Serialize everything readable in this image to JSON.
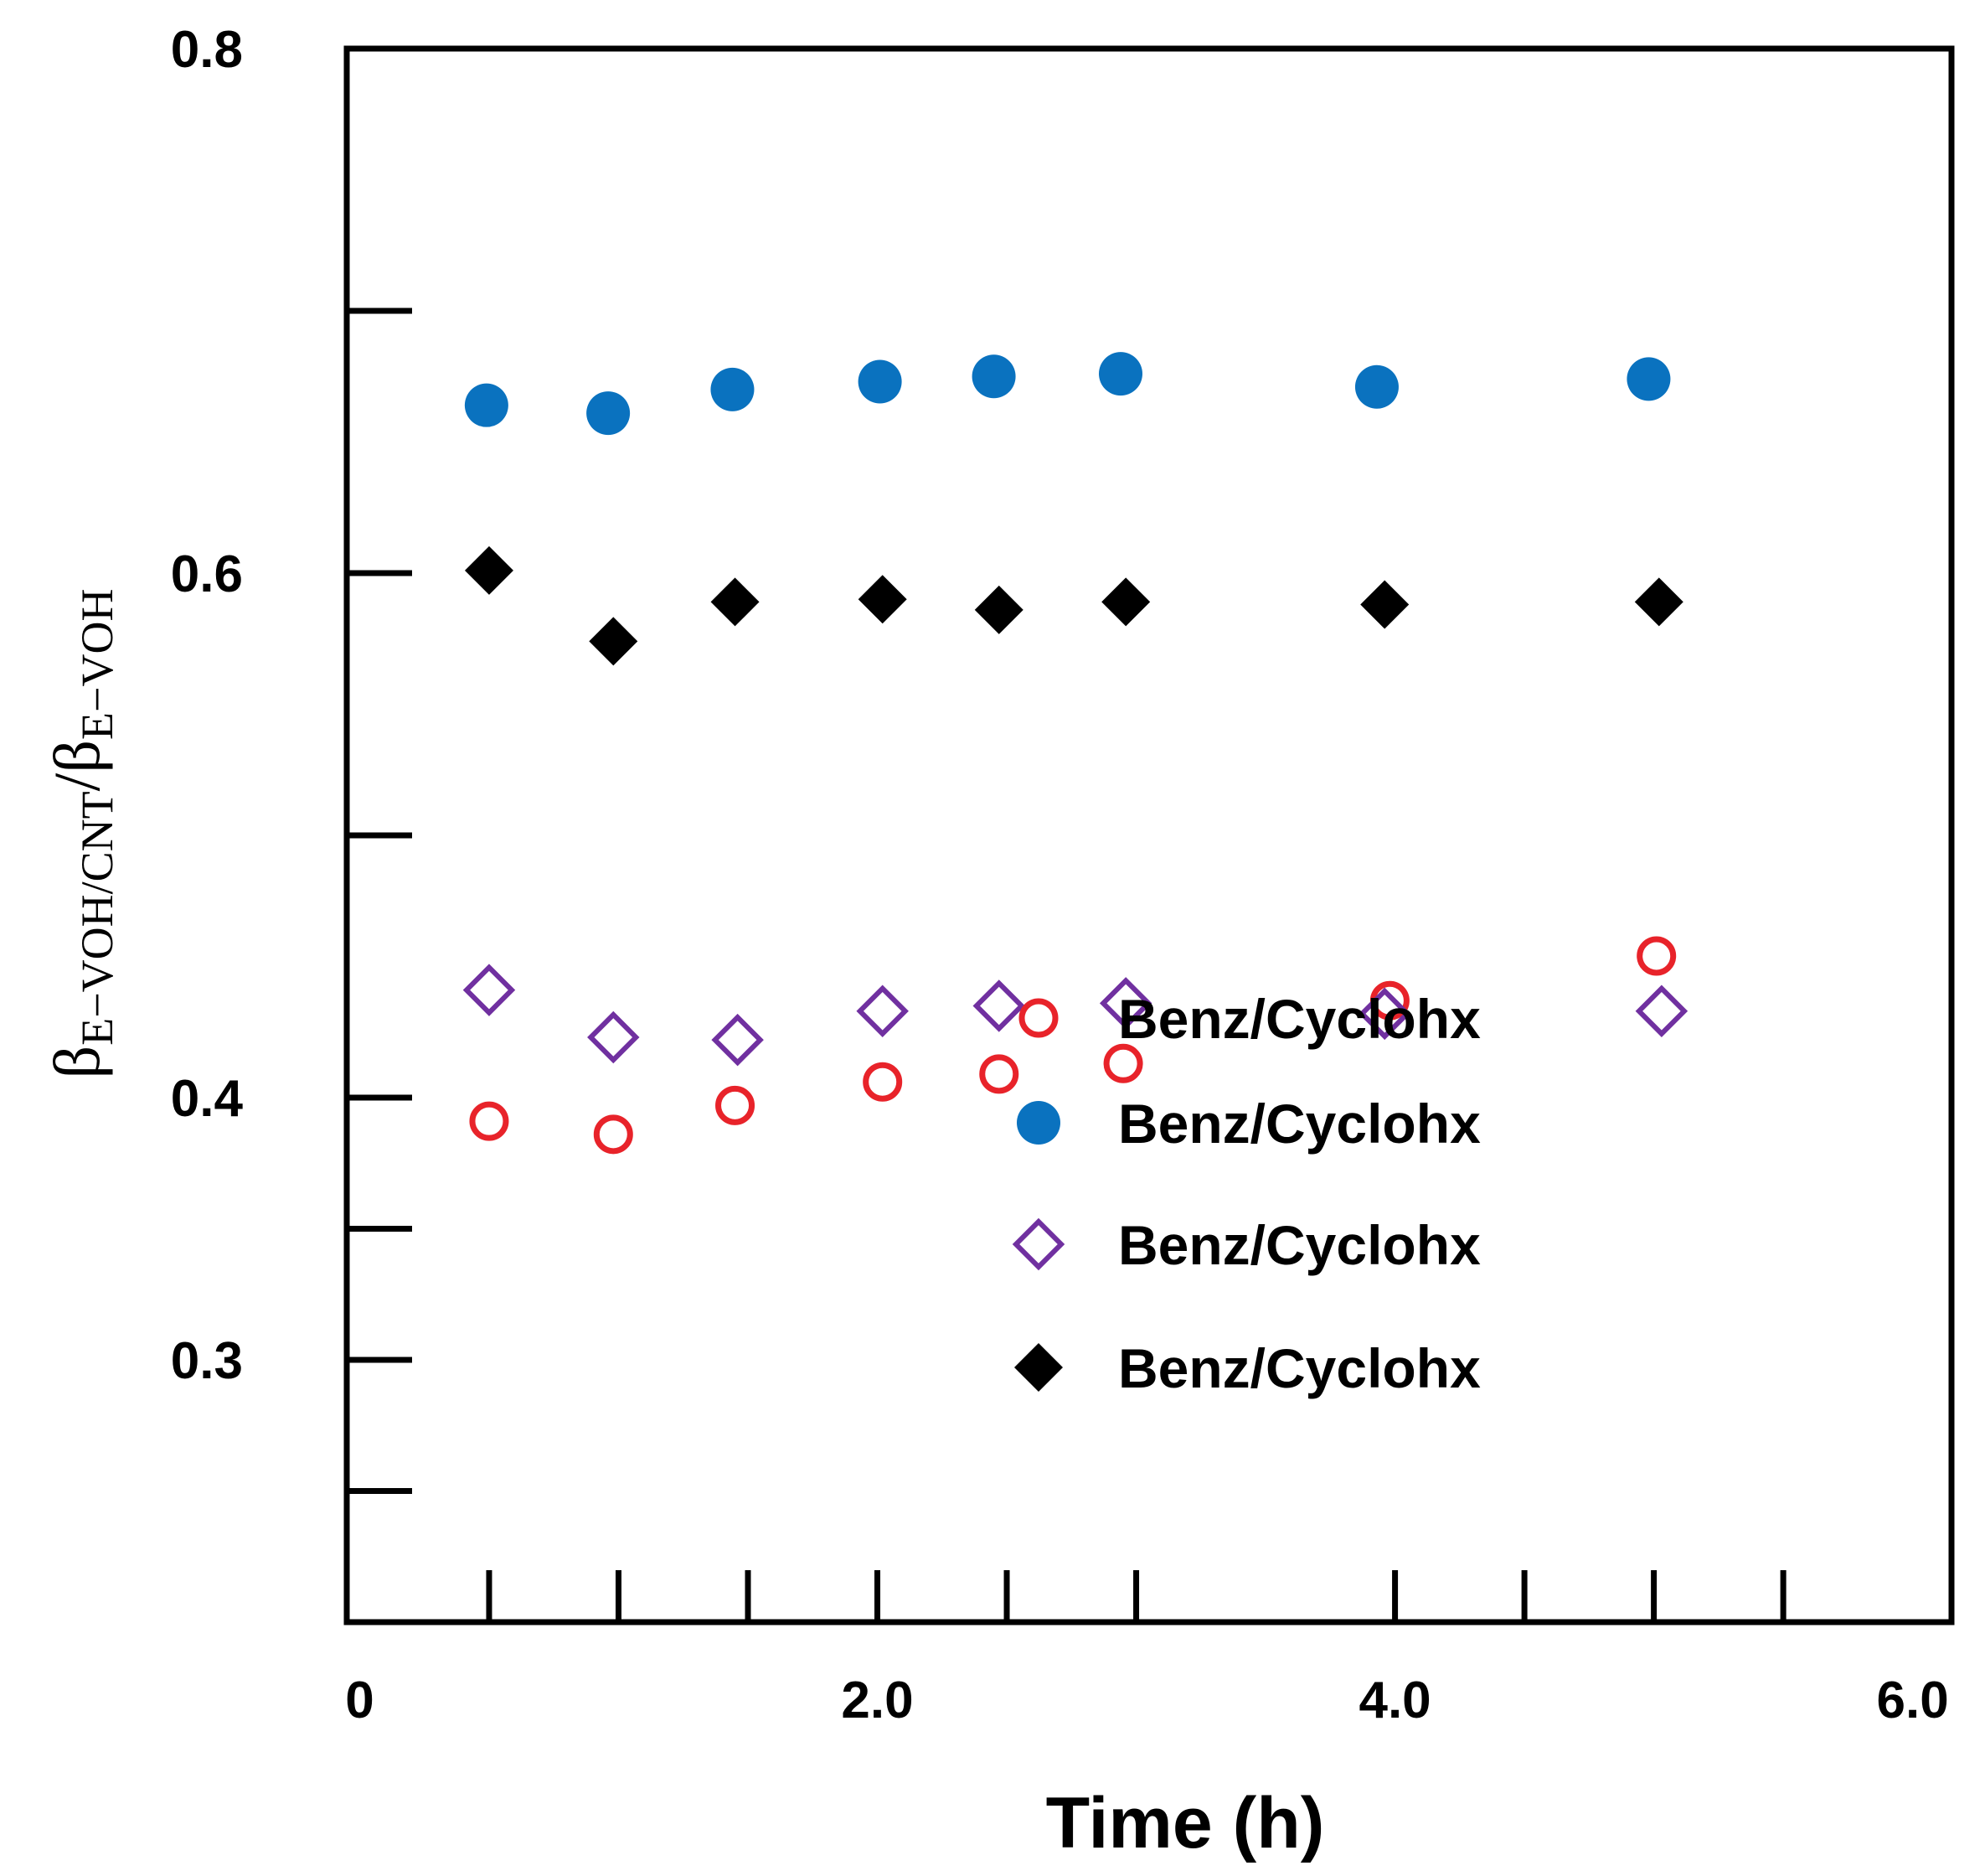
{
  "chart_data": {
    "type": "scatter",
    "title": "",
    "xlabel": "Time (h)",
    "ylabel": {
      "beta1": "β",
      "sub1": "E−VOH/CNT",
      "slash": "/",
      "beta2": "β",
      "sub2": "E−VOH"
    },
    "xlim": [
      -0.05,
      6.15
    ],
    "ylim": [
      0.2,
      0.8
    ],
    "x_ticks_labeled": [
      {
        "value": 0,
        "label": "0"
      },
      {
        "value": 2.0,
        "label": "2.0"
      },
      {
        "value": 4.0,
        "label": "4.0"
      },
      {
        "value": 6.0,
        "label": "6.0"
      }
    ],
    "x_ticks_minor": [
      0.5,
      1.0,
      1.5,
      2.0,
      2.5,
      3.0,
      4.0,
      4.5,
      5.0,
      5.5
    ],
    "y_ticks": [
      {
        "value": 0.8,
        "label": "0.8"
      },
      {
        "value": 0.7,
        "label": ""
      },
      {
        "value": 0.6,
        "label": "0.6"
      },
      {
        "value": 0.5,
        "label": ""
      },
      {
        "value": 0.4,
        "label": "0.4"
      },
      {
        "value": 0.35,
        "label": ""
      },
      {
        "value": 0.3,
        "label": "0.3"
      },
      {
        "value": 0.25,
        "label": ""
      }
    ],
    "grid": false,
    "legend_position": "center-right",
    "series": [
      {
        "name": "Benz/Cyclohx",
        "marker": "open-circle",
        "color": "#e8232a",
        "x": [
          0.5,
          0.98,
          1.45,
          2.02,
          2.47,
          2.95,
          3.98,
          5.01
        ],
        "y": [
          0.391,
          0.386,
          0.397,
          0.406,
          0.409,
          0.413,
          0.437,
          0.454
        ]
      },
      {
        "name": "Benz/Cyclohx",
        "marker": "filled-circle",
        "color": "#0a72bf",
        "x": [
          0.49,
          0.96,
          1.44,
          2.01,
          2.45,
          2.94,
          3.93,
          4.98
        ],
        "y": [
          0.664,
          0.661,
          0.67,
          0.673,
          0.675,
          0.676,
          0.671,
          0.674
        ]
      },
      {
        "name": "Benz/Cyclohx",
        "marker": "open-diamond",
        "color": "#7030a0",
        "x": [
          0.5,
          0.98,
          1.46,
          2.02,
          2.47,
          2.96,
          3.96,
          5.03
        ],
        "y": [
          0.441,
          0.423,
          0.422,
          0.433,
          0.435,
          0.436,
          0.432,
          0.433
        ]
      },
      {
        "name": "Benz/Cyclohx",
        "marker": "filled-diamond",
        "color": "#000000",
        "x": [
          0.5,
          0.98,
          1.45,
          2.02,
          2.47,
          2.96,
          3.96,
          5.02
        ],
        "y": [
          0.601,
          0.574,
          0.589,
          0.59,
          0.586,
          0.589,
          0.588,
          0.589
        ]
      }
    ]
  }
}
